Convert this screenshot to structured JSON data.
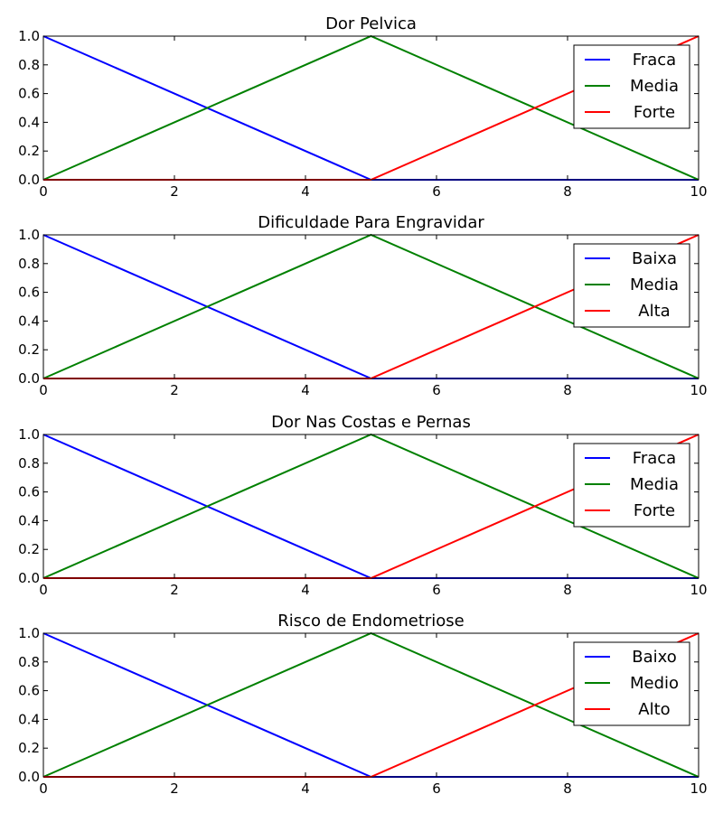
{
  "chart_data": [
    {
      "type": "line",
      "title": "Dor Pelvica",
      "xlabel": "",
      "ylabel": "",
      "xlim": [
        0,
        10
      ],
      "ylim": [
        0,
        1
      ],
      "xticks": [
        "0",
        "2",
        "4",
        "6",
        "8",
        "10"
      ],
      "yticks": [
        "0.0",
        "0.2",
        "0.4",
        "0.6",
        "0.8",
        "1.0"
      ],
      "grid": false,
      "legend_position": "top-right",
      "series": [
        {
          "name": "Fraca",
          "color": "#0000ff",
          "x": [
            0,
            5,
            10
          ],
          "y": [
            1,
            0,
            0
          ]
        },
        {
          "name": "Media",
          "color": "#008000",
          "x": [
            0,
            5,
            10
          ],
          "y": [
            0,
            1,
            0
          ]
        },
        {
          "name": "Forte",
          "color": "#ff0000",
          "x": [
            0,
            5,
            10
          ],
          "y": [
            0,
            0,
            1
          ]
        }
      ]
    },
    {
      "type": "line",
      "title": "Dificuldade Para Engravidar",
      "xlabel": "",
      "ylabel": "",
      "xlim": [
        0,
        10
      ],
      "ylim": [
        0,
        1
      ],
      "xticks": [
        "0",
        "2",
        "4",
        "6",
        "8",
        "10"
      ],
      "yticks": [
        "0.0",
        "0.2",
        "0.4",
        "0.6",
        "0.8",
        "1.0"
      ],
      "grid": false,
      "legend_position": "top-right",
      "series": [
        {
          "name": "Baixa",
          "color": "#0000ff",
          "x": [
            0,
            5,
            10
          ],
          "y": [
            1,
            0,
            0
          ]
        },
        {
          "name": "Media",
          "color": "#008000",
          "x": [
            0,
            5,
            10
          ],
          "y": [
            0,
            1,
            0
          ]
        },
        {
          "name": "Alta",
          "color": "#ff0000",
          "x": [
            0,
            5,
            10
          ],
          "y": [
            0,
            0,
            1
          ]
        }
      ]
    },
    {
      "type": "line",
      "title": "Dor Nas Costas e Pernas",
      "xlabel": "",
      "ylabel": "",
      "xlim": [
        0,
        10
      ],
      "ylim": [
        0,
        1
      ],
      "xticks": [
        "0",
        "2",
        "4",
        "6",
        "8",
        "10"
      ],
      "yticks": [
        "0.0",
        "0.2",
        "0.4",
        "0.6",
        "0.8",
        "1.0"
      ],
      "grid": false,
      "legend_position": "top-right",
      "series": [
        {
          "name": "Fraca",
          "color": "#0000ff",
          "x": [
            0,
            5,
            10
          ],
          "y": [
            1,
            0,
            0
          ]
        },
        {
          "name": "Media",
          "color": "#008000",
          "x": [
            0,
            5,
            10
          ],
          "y": [
            0,
            1,
            0
          ]
        },
        {
          "name": "Forte",
          "color": "#ff0000",
          "x": [
            0,
            5,
            10
          ],
          "y": [
            0,
            0,
            1
          ]
        }
      ]
    },
    {
      "type": "line",
      "title": "Risco de Endometriose",
      "xlabel": "",
      "ylabel": "",
      "xlim": [
        0,
        10
      ],
      "ylim": [
        0,
        1
      ],
      "xticks": [
        "0",
        "2",
        "4",
        "6",
        "8",
        "10"
      ],
      "yticks": [
        "0.0",
        "0.2",
        "0.4",
        "0.6",
        "0.8",
        "1.0"
      ],
      "grid": false,
      "legend_position": "top-right",
      "series": [
        {
          "name": "Baixo",
          "color": "#0000ff",
          "x": [
            0,
            5,
            10
          ],
          "y": [
            1,
            0,
            0
          ]
        },
        {
          "name": "Medio",
          "color": "#008000",
          "x": [
            0,
            5,
            10
          ],
          "y": [
            0,
            1,
            0
          ]
        },
        {
          "name": "Alto",
          "color": "#ff0000",
          "x": [
            0,
            5,
            10
          ],
          "y": [
            0,
            0,
            1
          ]
        }
      ]
    }
  ]
}
